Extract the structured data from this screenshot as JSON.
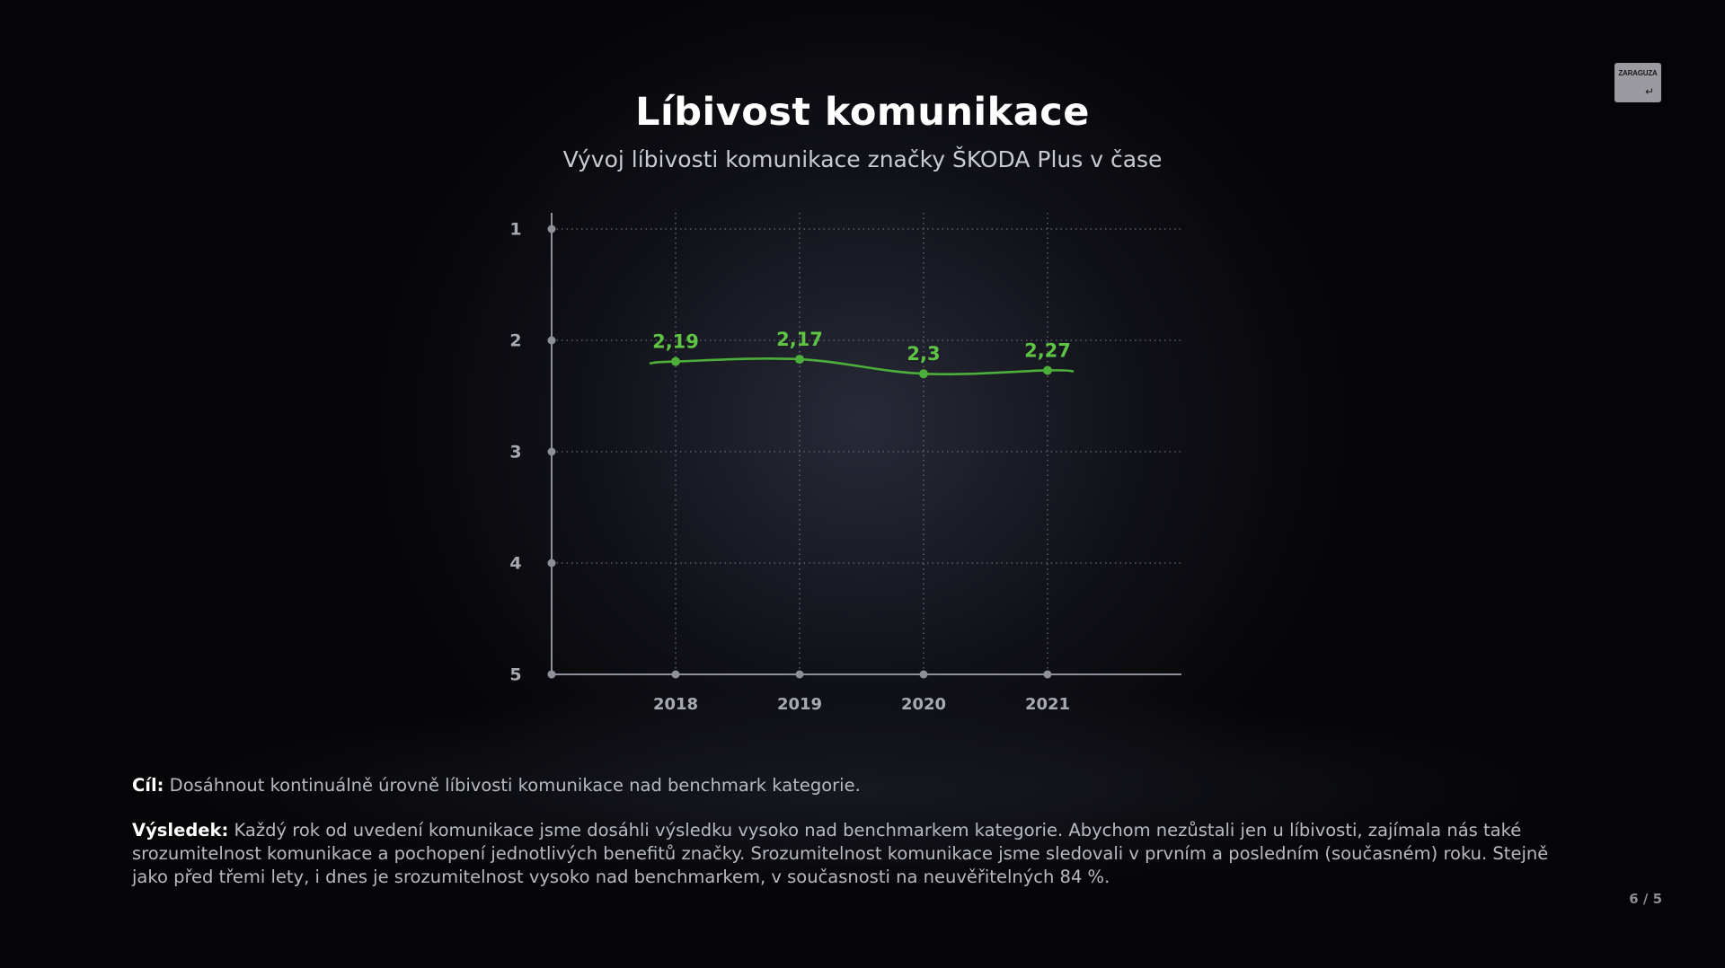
{
  "slide": {
    "title": "Líbivost komunikace",
    "subtitle": "Vývoj líbivosti komunikace značky ŠKODA Plus v čase",
    "logo": {
      "text": "ZARAGUZA",
      "icon": "return-arrow-icon"
    },
    "goal_label": "Cíl:",
    "goal_text": " Dosáhnout kontinuálně úrovně líbivosti komunikace nad benchmark kategorie.",
    "result_label": "Výsledek:",
    "result_text": " Každý rok od uvedení komunikace jsme dosáhli výsledku vysoko nad benchmarkem kategorie. Abychom nezůstali jen u líbivosti, zajímala nás také srozumitelnost komunikace a pochopení jednotlivých benefitů značky. Srozumitelnost komunikace jsme sledovali v prvním a posledním (současném) roku. Stejně jako před třemi lety, i dnes je srozumitelnost vysoko nad benchmarkem, v současnosti na neuvěřitelných 84 %.",
    "page_number": "6 / 5"
  },
  "chart_data": {
    "type": "line",
    "categories": [
      "2018",
      "2019",
      "2020",
      "2021"
    ],
    "series": [
      {
        "values": [
          2.19,
          2.17,
          2.3,
          2.27
        ],
        "labels": [
          "2,19",
          "2,17",
          "2,3",
          "2,27"
        ]
      }
    ],
    "yticks": [
      "1",
      "2",
      "3",
      "4",
      "5"
    ],
    "ylim": [
      1,
      5
    ],
    "y_inverted": true,
    "grid": true,
    "line_smooth": true,
    "colors": {
      "series": "#4caf3a",
      "label": "#5fc444",
      "axis": "#8e9099",
      "grid": "#6a6c76",
      "tick_label": "#a8aab2"
    }
  }
}
